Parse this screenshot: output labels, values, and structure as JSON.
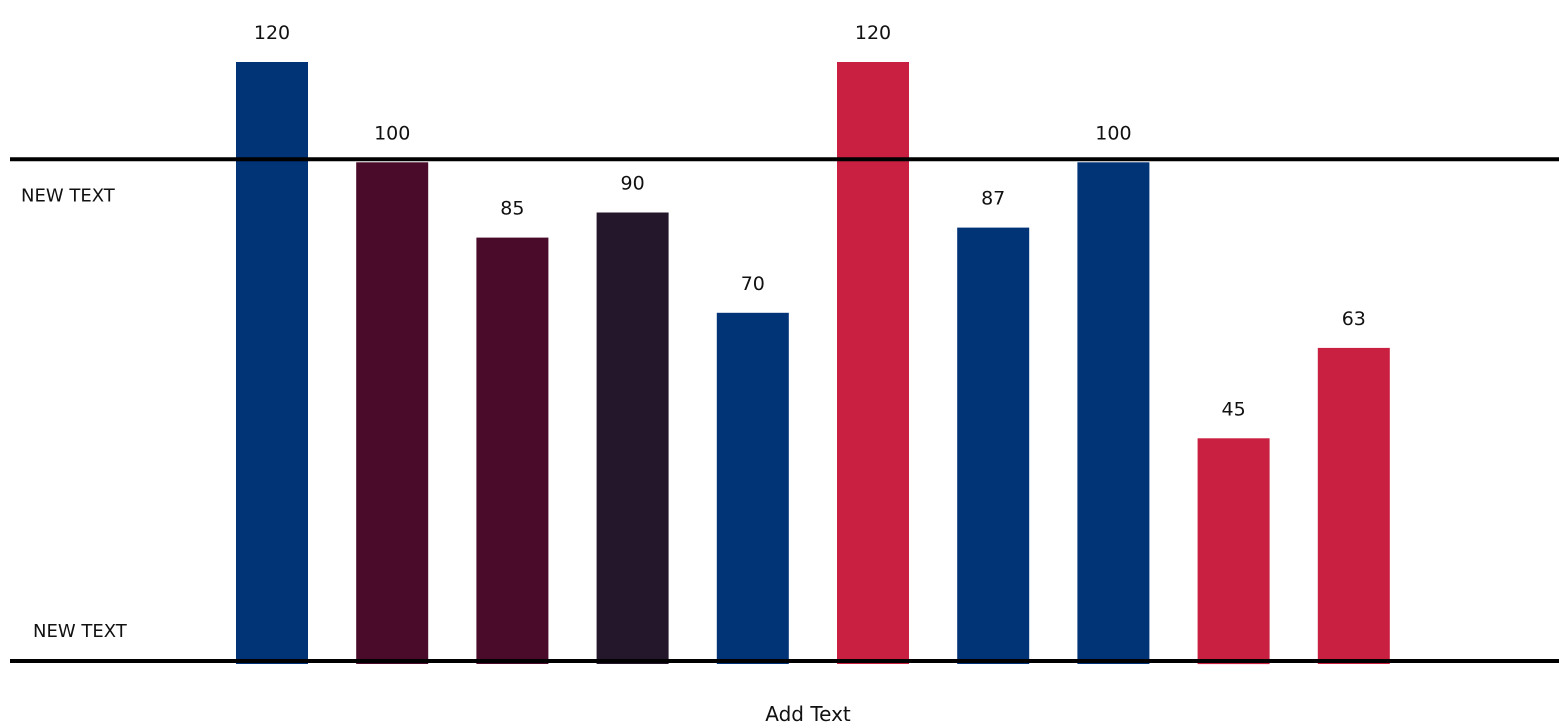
{
  "chart_data": {
    "type": "bar",
    "title": "",
    "xlabel": "Add Text",
    "ylabel": "",
    "ylim": [
      0,
      120
    ],
    "grid": false,
    "values": [
      120,
      100,
      85,
      90,
      70,
      120,
      87,
      100,
      45,
      63
    ],
    "colors": [
      "#013377",
      "#4a0a29",
      "#4a0a29",
      "#25172b",
      "#013377",
      "#c91f41",
      "#013377",
      "#013377",
      "#c91f41",
      "#c91f41"
    ],
    "reference_lines": [
      {
        "value": 100,
        "label": "NEW TEXT"
      },
      {
        "value": 0,
        "label": "NEW TEXT"
      }
    ]
  }
}
